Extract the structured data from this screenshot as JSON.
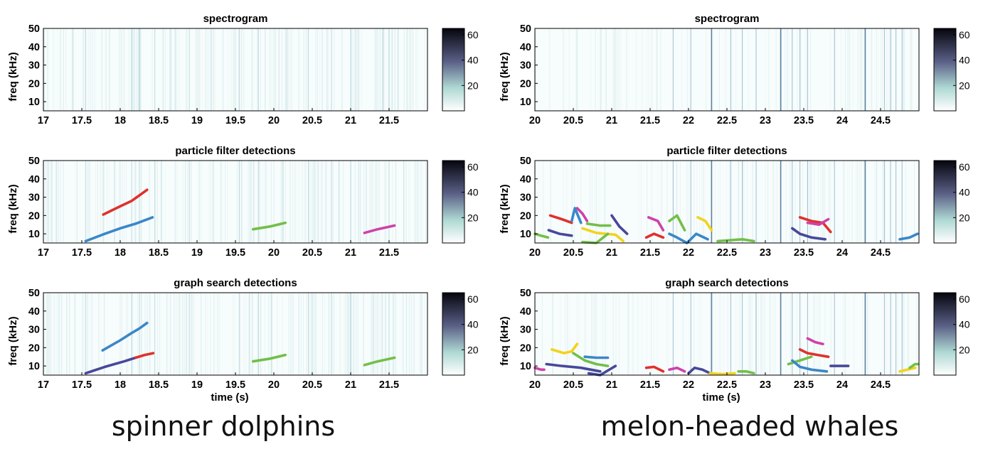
{
  "figure": {
    "species": [
      "spinner dolphins",
      "melon-headed whales"
    ]
  },
  "chart_data": [
    {
      "type": "line",
      "title": "spectrogram",
      "ylabel": "freq (kHz)",
      "xlabel": "",
      "xlim": [
        17,
        22
      ],
      "ylim": [
        5,
        50
      ],
      "xticks": [
        "17",
        "17.5",
        "18",
        "18.5",
        "19",
        "19.5",
        "20",
        "20.5",
        "21",
        "21.5"
      ],
      "yticks": [
        "10",
        "20",
        "30",
        "40",
        "50"
      ],
      "colorbar_ticks": [
        "20",
        "40",
        "60"
      ],
      "series": []
    },
    {
      "type": "line",
      "title": "particle filter detections",
      "ylabel": "freq (kHz)",
      "xlabel": "",
      "xlim": [
        17,
        22
      ],
      "ylim": [
        5,
        50
      ],
      "xticks": [
        "17",
        "17.5",
        "18",
        "18.5",
        "19",
        "19.5",
        "20",
        "20.5",
        "21",
        "21.5"
      ],
      "yticks": [
        "10",
        "20",
        "30",
        "40",
        "50"
      ],
      "colorbar_ticks": [
        "20",
        "40",
        "60"
      ],
      "series": [
        {
          "color": "#e0312c",
          "x": [
            17.78,
            18.0,
            18.15,
            18.25,
            18.35
          ],
          "y": [
            20.5,
            25,
            28,
            31,
            34
          ]
        },
        {
          "color": "#3a87c8",
          "x": [
            17.55,
            17.8,
            18.0,
            18.2,
            18.42
          ],
          "y": [
            6,
            10,
            13,
            15.5,
            19
          ]
        },
        {
          "color": "#72bf48",
          "x": [
            19.73,
            19.95,
            20.15
          ],
          "y": [
            12.5,
            14,
            16
          ]
        },
        {
          "color": "#cf41a8",
          "x": [
            21.18,
            21.35,
            21.57
          ],
          "y": [
            10.5,
            12.5,
            14.5
          ]
        }
      ]
    },
    {
      "type": "line",
      "title": "graph search detections",
      "ylabel": "freq (kHz)",
      "xlabel": "time (s)",
      "xlim": [
        17,
        22
      ],
      "ylim": [
        5,
        50
      ],
      "xticks": [
        "17",
        "17.5",
        "18",
        "18.5",
        "19",
        "19.5",
        "20",
        "20.5",
        "21",
        "21.5"
      ],
      "yticks": [
        "10",
        "20",
        "30",
        "40",
        "50"
      ],
      "colorbar_ticks": [
        "20",
        "40",
        "60"
      ],
      "series": [
        {
          "color": "#3a87c8",
          "x": [
            17.77,
            18.0,
            18.15,
            18.25,
            18.35
          ],
          "y": [
            18.5,
            24,
            28,
            30.5,
            33.5
          ]
        },
        {
          "color": "#47489a",
          "x": [
            17.55,
            17.8,
            18.05,
            18.2
          ],
          "y": [
            6,
            9.5,
            12.5,
            14.5
          ]
        },
        {
          "color": "#e0312c",
          "x": [
            18.2,
            18.32,
            18.43
          ],
          "y": [
            14.5,
            16,
            17
          ]
        },
        {
          "color": "#72bf48",
          "x": [
            19.73,
            19.95,
            20.15
          ],
          "y": [
            12.5,
            14,
            16
          ]
        },
        {
          "color": "#72bf48",
          "x": [
            21.18,
            21.35,
            21.57
          ],
          "y": [
            10.5,
            12.5,
            14.5
          ]
        }
      ]
    },
    {
      "type": "line",
      "title": "spectrogram",
      "ylabel": "freq (kHz)",
      "xlabel": "",
      "xlim": [
        20,
        25
      ],
      "ylim": [
        5,
        50
      ],
      "xticks": [
        "20",
        "20.5",
        "21",
        "21.5",
        "22",
        "22.5",
        "23",
        "23.5",
        "24",
        "24.5"
      ],
      "yticks": [
        "10",
        "20",
        "30",
        "40",
        "50"
      ],
      "colorbar_ticks": [
        "20",
        "40",
        "60"
      ],
      "series": []
    },
    {
      "type": "line",
      "title": "particle filter detections",
      "ylabel": "freq (kHz)",
      "xlabel": "",
      "xlim": [
        20,
        25
      ],
      "ylim": [
        5,
        50
      ],
      "xticks": [
        "20",
        "20.5",
        "21",
        "21.5",
        "22",
        "22.5",
        "23",
        "23.5",
        "24",
        "24.5"
      ],
      "yticks": [
        "10",
        "20",
        "30",
        "40",
        "50"
      ],
      "colorbar_ticks": [
        "20",
        "40",
        "60"
      ],
      "series": [
        {
          "color": "#e0312c",
          "x": [
            20.2,
            20.35,
            20.48
          ],
          "y": [
            20,
            18,
            16
          ]
        },
        {
          "color": "#72bf48",
          "x": [
            20.0,
            20.08,
            20.17
          ],
          "y": [
            10,
            9,
            8
          ]
        },
        {
          "color": "#47489a",
          "x": [
            20.18,
            20.32,
            20.48
          ],
          "y": [
            12,
            10,
            9
          ]
        },
        {
          "color": "#3a87c8",
          "x": [
            20.48,
            20.52,
            20.6
          ],
          "y": [
            17,
            24,
            16
          ]
        },
        {
          "color": "#cf41a8",
          "x": [
            20.55,
            20.62,
            20.68
          ],
          "y": [
            24,
            21,
            17
          ]
        },
        {
          "color": "#f2d31c",
          "x": [
            20.62,
            20.8,
            21.05,
            21.15
          ],
          "y": [
            13,
            10.5,
            9.5,
            6
          ]
        },
        {
          "color": "#72bf48",
          "x": [
            20.68,
            20.85,
            20.98
          ],
          "y": [
            15.5,
            14.5,
            14.5
          ]
        },
        {
          "color": "#72bf48",
          "x": [
            20.62,
            20.8,
            20.95
          ],
          "y": [
            5.5,
            5,
            10
          ]
        },
        {
          "color": "#47489a",
          "x": [
            21.0,
            21.1,
            21.2
          ],
          "y": [
            20,
            14,
            10
          ]
        },
        {
          "color": "#cf41a8",
          "x": [
            21.48,
            21.6,
            21.67
          ],
          "y": [
            19,
            17,
            12
          ]
        },
        {
          "color": "#e0312c",
          "x": [
            21.45,
            21.55,
            21.67
          ],
          "y": [
            8,
            10,
            8
          ]
        },
        {
          "color": "#72bf48",
          "x": [
            21.75,
            21.85,
            21.95
          ],
          "y": [
            17,
            20,
            12
          ]
        },
        {
          "color": "#3a87c8",
          "x": [
            21.75,
            21.85,
            21.98,
            22.1,
            22.25
          ],
          "y": [
            10,
            8,
            5,
            10,
            7
          ]
        },
        {
          "color": "#f2d31c",
          "x": [
            22.12,
            22.22,
            22.3
          ],
          "y": [
            19,
            17,
            12
          ]
        },
        {
          "color": "#72bf48",
          "x": [
            22.38,
            22.55,
            22.7,
            22.85
          ],
          "y": [
            6,
            6.5,
            7,
            6
          ]
        },
        {
          "color": "#47489a",
          "x": [
            23.35,
            23.45,
            23.6,
            23.78
          ],
          "y": [
            13,
            10,
            8,
            7
          ]
        },
        {
          "color": "#e0312c",
          "x": [
            23.45,
            23.6,
            23.75,
            23.85
          ],
          "y": [
            19,
            17,
            16,
            11
          ]
        },
        {
          "color": "#cf41a8",
          "x": [
            23.55,
            23.7,
            23.82
          ],
          "y": [
            16,
            15,
            18
          ]
        },
        {
          "color": "#3a87c8",
          "x": [
            24.75,
            24.88,
            24.98
          ],
          "y": [
            7,
            8,
            10
          ]
        }
      ]
    },
    {
      "type": "line",
      "title": "graph search detections",
      "ylabel": "freq (kHz)",
      "xlabel": "time (s)",
      "xlim": [
        20,
        25
      ],
      "ylim": [
        5,
        50
      ],
      "xticks": [
        "20",
        "20.5",
        "21",
        "21.5",
        "22",
        "22.5",
        "23",
        "23.5",
        "24",
        "24.5"
      ],
      "yticks": [
        "10",
        "20",
        "30",
        "40",
        "50"
      ],
      "colorbar_ticks": [
        "20",
        "40",
        "60"
      ],
      "series": [
        {
          "color": "#cf41a8",
          "x": [
            20.0,
            20.08,
            20.12
          ],
          "y": [
            9,
            8,
            8
          ]
        },
        {
          "color": "#47489a",
          "x": [
            20.15,
            20.35,
            20.6,
            20.85
          ],
          "y": [
            11,
            10,
            9,
            7
          ]
        },
        {
          "color": "#f2d31c",
          "x": [
            20.22,
            20.38,
            20.48,
            20.55
          ],
          "y": [
            19,
            17,
            18,
            22
          ]
        },
        {
          "color": "#72bf48",
          "x": [
            20.5,
            20.65,
            20.8,
            20.95
          ],
          "y": [
            17,
            13,
            11,
            10
          ]
        },
        {
          "color": "#3a87c8",
          "x": [
            20.65,
            20.8,
            20.95
          ],
          "y": [
            15,
            14.5,
            14.5
          ]
        },
        {
          "color": "#47489a",
          "x": [
            20.7,
            20.85,
            21.05
          ],
          "y": [
            6,
            5,
            10
          ]
        },
        {
          "color": "#e0312c",
          "x": [
            21.45,
            21.55,
            21.67
          ],
          "y": [
            9,
            9.5,
            7
          ]
        },
        {
          "color": "#cf41a8",
          "x": [
            21.75,
            21.85,
            21.95
          ],
          "y": [
            8,
            9,
            7
          ]
        },
        {
          "color": "#47489a",
          "x": [
            22.0,
            22.08,
            22.18,
            22.28
          ],
          "y": [
            6,
            9,
            8,
            6
          ]
        },
        {
          "color": "#f2d31c",
          "x": [
            22.28,
            22.45,
            22.6
          ],
          "y": [
            6,
            5.5,
            6
          ]
        },
        {
          "color": "#72bf48",
          "x": [
            22.65,
            22.75,
            22.85
          ],
          "y": [
            7,
            7,
            6
          ]
        },
        {
          "color": "#72bf48",
          "x": [
            23.3,
            23.45,
            23.6
          ],
          "y": [
            11,
            13,
            15
          ]
        },
        {
          "color": "#3a87c8",
          "x": [
            23.35,
            23.45,
            23.6,
            23.8
          ],
          "y": [
            13,
            9.5,
            8,
            7
          ]
        },
        {
          "color": "#e0312c",
          "x": [
            23.45,
            23.55,
            23.68,
            23.82
          ],
          "y": [
            19,
            17,
            16,
            15
          ]
        },
        {
          "color": "#cf41a8",
          "x": [
            23.55,
            23.65,
            23.75
          ],
          "y": [
            25,
            23,
            22
          ]
        },
        {
          "color": "#47489a",
          "x": [
            23.85,
            23.95,
            24.08
          ],
          "y": [
            10,
            10,
            10
          ]
        },
        {
          "color": "#f2d31c",
          "x": [
            24.75,
            24.85,
            24.95
          ],
          "y": [
            7,
            8,
            9
          ]
        },
        {
          "color": "#72bf48",
          "x": [
            24.88,
            24.95,
            24.99
          ],
          "y": [
            9,
            11,
            11
          ]
        }
      ]
    }
  ]
}
